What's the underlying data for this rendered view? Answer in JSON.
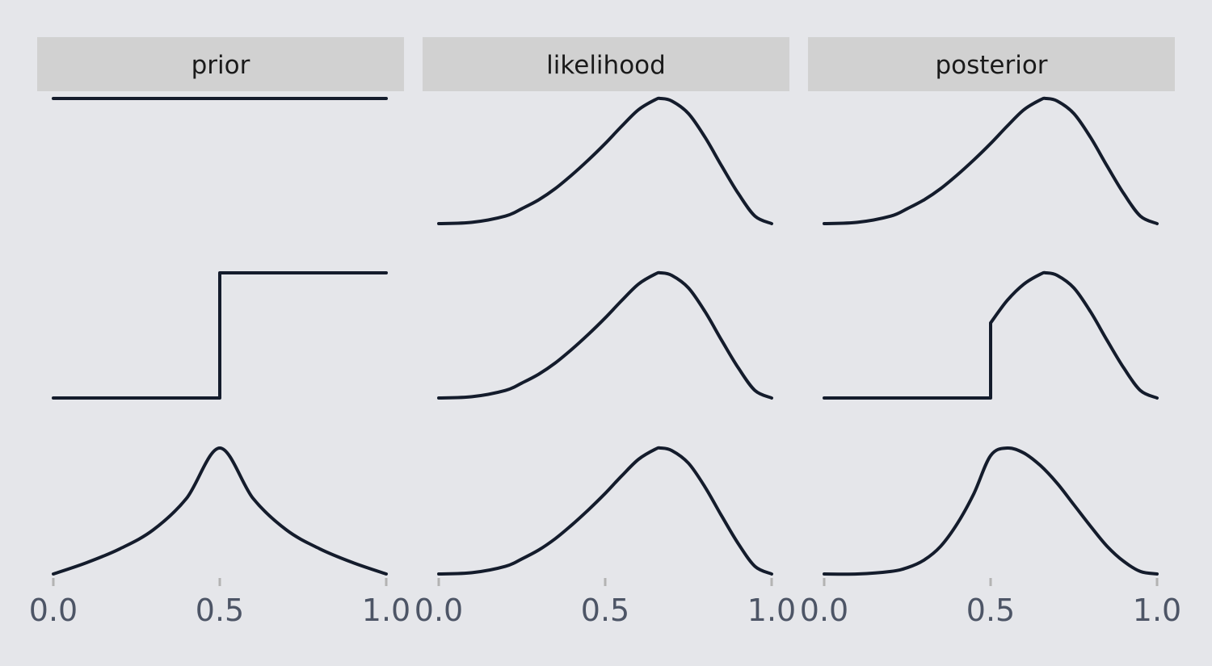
{
  "chart_data": {
    "type": "line",
    "facets": [
      {
        "key": "prior",
        "label": "prior"
      },
      {
        "key": "likelihood",
        "label": "likelihood"
      },
      {
        "key": "posterior",
        "label": "posterior"
      }
    ],
    "x_ticks": [
      "0.0",
      "0.5",
      "1.0"
    ],
    "xlim": [
      0,
      1
    ],
    "grid": false,
    "legend": "none",
    "rows": [
      {
        "prior": {
          "x": [
            0,
            0.1,
            0.2,
            0.3,
            0.4,
            0.5,
            0.6,
            0.7,
            0.8,
            0.9,
            1.0
          ],
          "y": [
            1,
            1,
            1,
            1,
            1,
            1,
            1,
            1,
            1,
            1,
            1
          ]
        },
        "likelihood": {
          "x": [
            0,
            0.1,
            0.2,
            0.25,
            0.3,
            0.35,
            0.4,
            0.45,
            0.5,
            0.55,
            0.6,
            0.65,
            0.667,
            0.7,
            0.75,
            0.8,
            0.85,
            0.9,
            0.95,
            1.0
          ],
          "y": [
            0,
            0.01,
            0.06,
            0.12,
            0.19,
            0.28,
            0.39,
            0.51,
            0.64,
            0.78,
            0.91,
            0.99,
            1.0,
            0.98,
            0.88,
            0.69,
            0.46,
            0.24,
            0.06,
            0
          ]
        },
        "posterior": {
          "x": [
            0,
            0.1,
            0.2,
            0.25,
            0.3,
            0.35,
            0.4,
            0.45,
            0.5,
            0.55,
            0.6,
            0.65,
            0.667,
            0.7,
            0.75,
            0.8,
            0.85,
            0.9,
            0.95,
            1.0
          ],
          "y": [
            0,
            0.01,
            0.06,
            0.12,
            0.19,
            0.28,
            0.39,
            0.51,
            0.64,
            0.78,
            0.91,
            0.99,
            1.0,
            0.98,
            0.88,
            0.69,
            0.46,
            0.24,
            0.06,
            0
          ]
        }
      },
      {
        "prior": {
          "x": [
            0,
            0.1,
            0.2,
            0.3,
            0.4,
            0.5,
            0.5,
            0.6,
            0.7,
            0.8,
            0.9,
            1.0
          ],
          "y": [
            0,
            0,
            0,
            0,
            0,
            0,
            1,
            1,
            1,
            1,
            1,
            1
          ]
        },
        "likelihood": {
          "x": [
            0,
            0.1,
            0.2,
            0.25,
            0.3,
            0.35,
            0.4,
            0.45,
            0.5,
            0.55,
            0.6,
            0.65,
            0.667,
            0.7,
            0.75,
            0.8,
            0.85,
            0.9,
            0.95,
            1.0
          ],
          "y": [
            0,
            0.01,
            0.06,
            0.12,
            0.19,
            0.28,
            0.39,
            0.51,
            0.64,
            0.78,
            0.91,
            0.99,
            1.0,
            0.98,
            0.88,
            0.69,
            0.46,
            0.24,
            0.06,
            0
          ]
        },
        "posterior": {
          "x": [
            0,
            0.1,
            0.2,
            0.3,
            0.4,
            0.5,
            0.5,
            0.55,
            0.6,
            0.65,
            0.667,
            0.7,
            0.75,
            0.8,
            0.85,
            0.9,
            0.95,
            1.0
          ],
          "y": [
            0,
            0,
            0,
            0,
            0,
            0,
            0.6,
            0.78,
            0.91,
            0.99,
            1.0,
            0.98,
            0.88,
            0.69,
            0.46,
            0.24,
            0.06,
            0
          ]
        }
      },
      {
        "prior": {
          "x": [
            0,
            0.1,
            0.2,
            0.3,
            0.4,
            0.5,
            0.6,
            0.7,
            0.8,
            0.9,
            1.0
          ],
          "y": [
            0,
            0.09,
            0.2,
            0.35,
            0.6,
            1.0,
            0.6,
            0.35,
            0.2,
            0.09,
            0
          ]
        },
        "likelihood": {
          "x": [
            0,
            0.1,
            0.2,
            0.25,
            0.3,
            0.35,
            0.4,
            0.45,
            0.5,
            0.55,
            0.6,
            0.65,
            0.667,
            0.7,
            0.75,
            0.8,
            0.85,
            0.9,
            0.95,
            1.0
          ],
          "y": [
            0,
            0.01,
            0.06,
            0.12,
            0.19,
            0.28,
            0.39,
            0.51,
            0.64,
            0.78,
            0.91,
            0.99,
            1.0,
            0.98,
            0.88,
            0.69,
            0.46,
            0.24,
            0.06,
            0
          ]
        },
        "posterior": {
          "x": [
            0,
            0.1,
            0.2,
            0.25,
            0.3,
            0.35,
            0.4,
            0.45,
            0.5,
            0.55,
            0.6,
            0.65,
            0.7,
            0.75,
            0.8,
            0.85,
            0.9,
            0.95,
            1.0
          ],
          "y": [
            0,
            0.0,
            0.02,
            0.05,
            0.11,
            0.22,
            0.4,
            0.64,
            0.94,
            1.0,
            0.96,
            0.86,
            0.72,
            0.55,
            0.38,
            0.22,
            0.1,
            0.02,
            0
          ]
        }
      }
    ]
  }
}
